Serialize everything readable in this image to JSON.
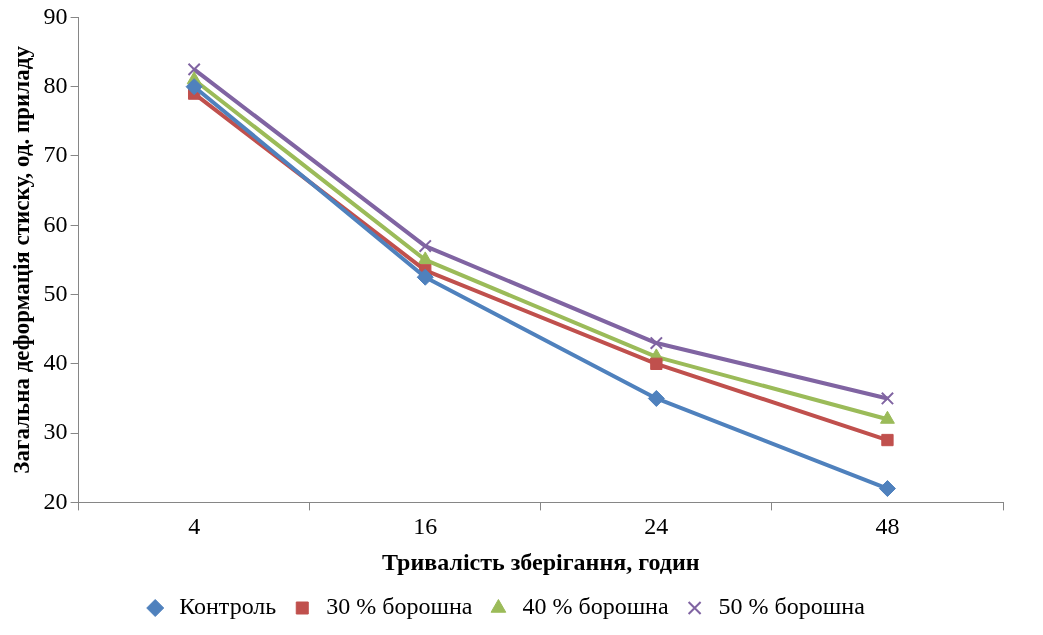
{
  "chart_data": {
    "type": "line",
    "xlabel": "Тривалість зберігання, годин",
    "ylabel": "Загальна деформація стиску, од. приладу",
    "categories": [
      "4",
      "16",
      "24",
      "48"
    ],
    "ylim": [
      20,
      90
    ],
    "yticks": [
      20,
      30,
      40,
      50,
      60,
      70,
      80,
      90
    ],
    "grid": false,
    "legend": "bottom",
    "series": [
      {
        "name": "Контроль",
        "color": "#4f81bd",
        "marker": "diamond",
        "values": [
          80,
          52.5,
          35,
          22
        ]
      },
      {
        "name": "30 % борошна",
        "color": "#c0504d",
        "marker": "square",
        "values": [
          79,
          53.5,
          40,
          29
        ]
      },
      {
        "name": "40 % борошна",
        "color": "#9bbb59",
        "marker": "triangle",
        "values": [
          81,
          55,
          41,
          32
        ]
      },
      {
        "name": "50 % борошна",
        "color": "#8064a2",
        "marker": "cross",
        "values": [
          82.5,
          57,
          43,
          35
        ]
      }
    ]
  }
}
